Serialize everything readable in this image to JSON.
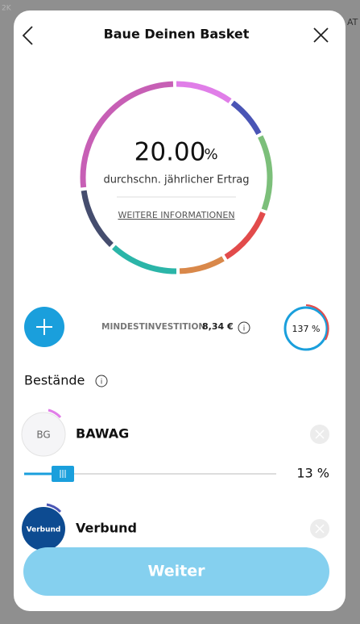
{
  "background": {
    "labels": [
      "2K",
      "AT"
    ]
  },
  "header": {
    "title": "Baue Deinen Basket"
  },
  "summary": {
    "return_value": "20.00",
    "return_unit": "%",
    "return_label": "durchschn. jährlicher Ertrag",
    "link": "WEITERE INFORMATIONEN"
  },
  "investment": {
    "label": "MINDESTINVESTITION",
    "amount": "8,34 €",
    "allocation": "137 %"
  },
  "holdings": {
    "title": "Bestände",
    "items": [
      {
        "logo": "BG",
        "name": "BAWAG",
        "share": "13 %"
      },
      {
        "logo": "Verbund",
        "name": "Verbund"
      }
    ]
  },
  "button": {
    "label": "Weiter"
  }
}
